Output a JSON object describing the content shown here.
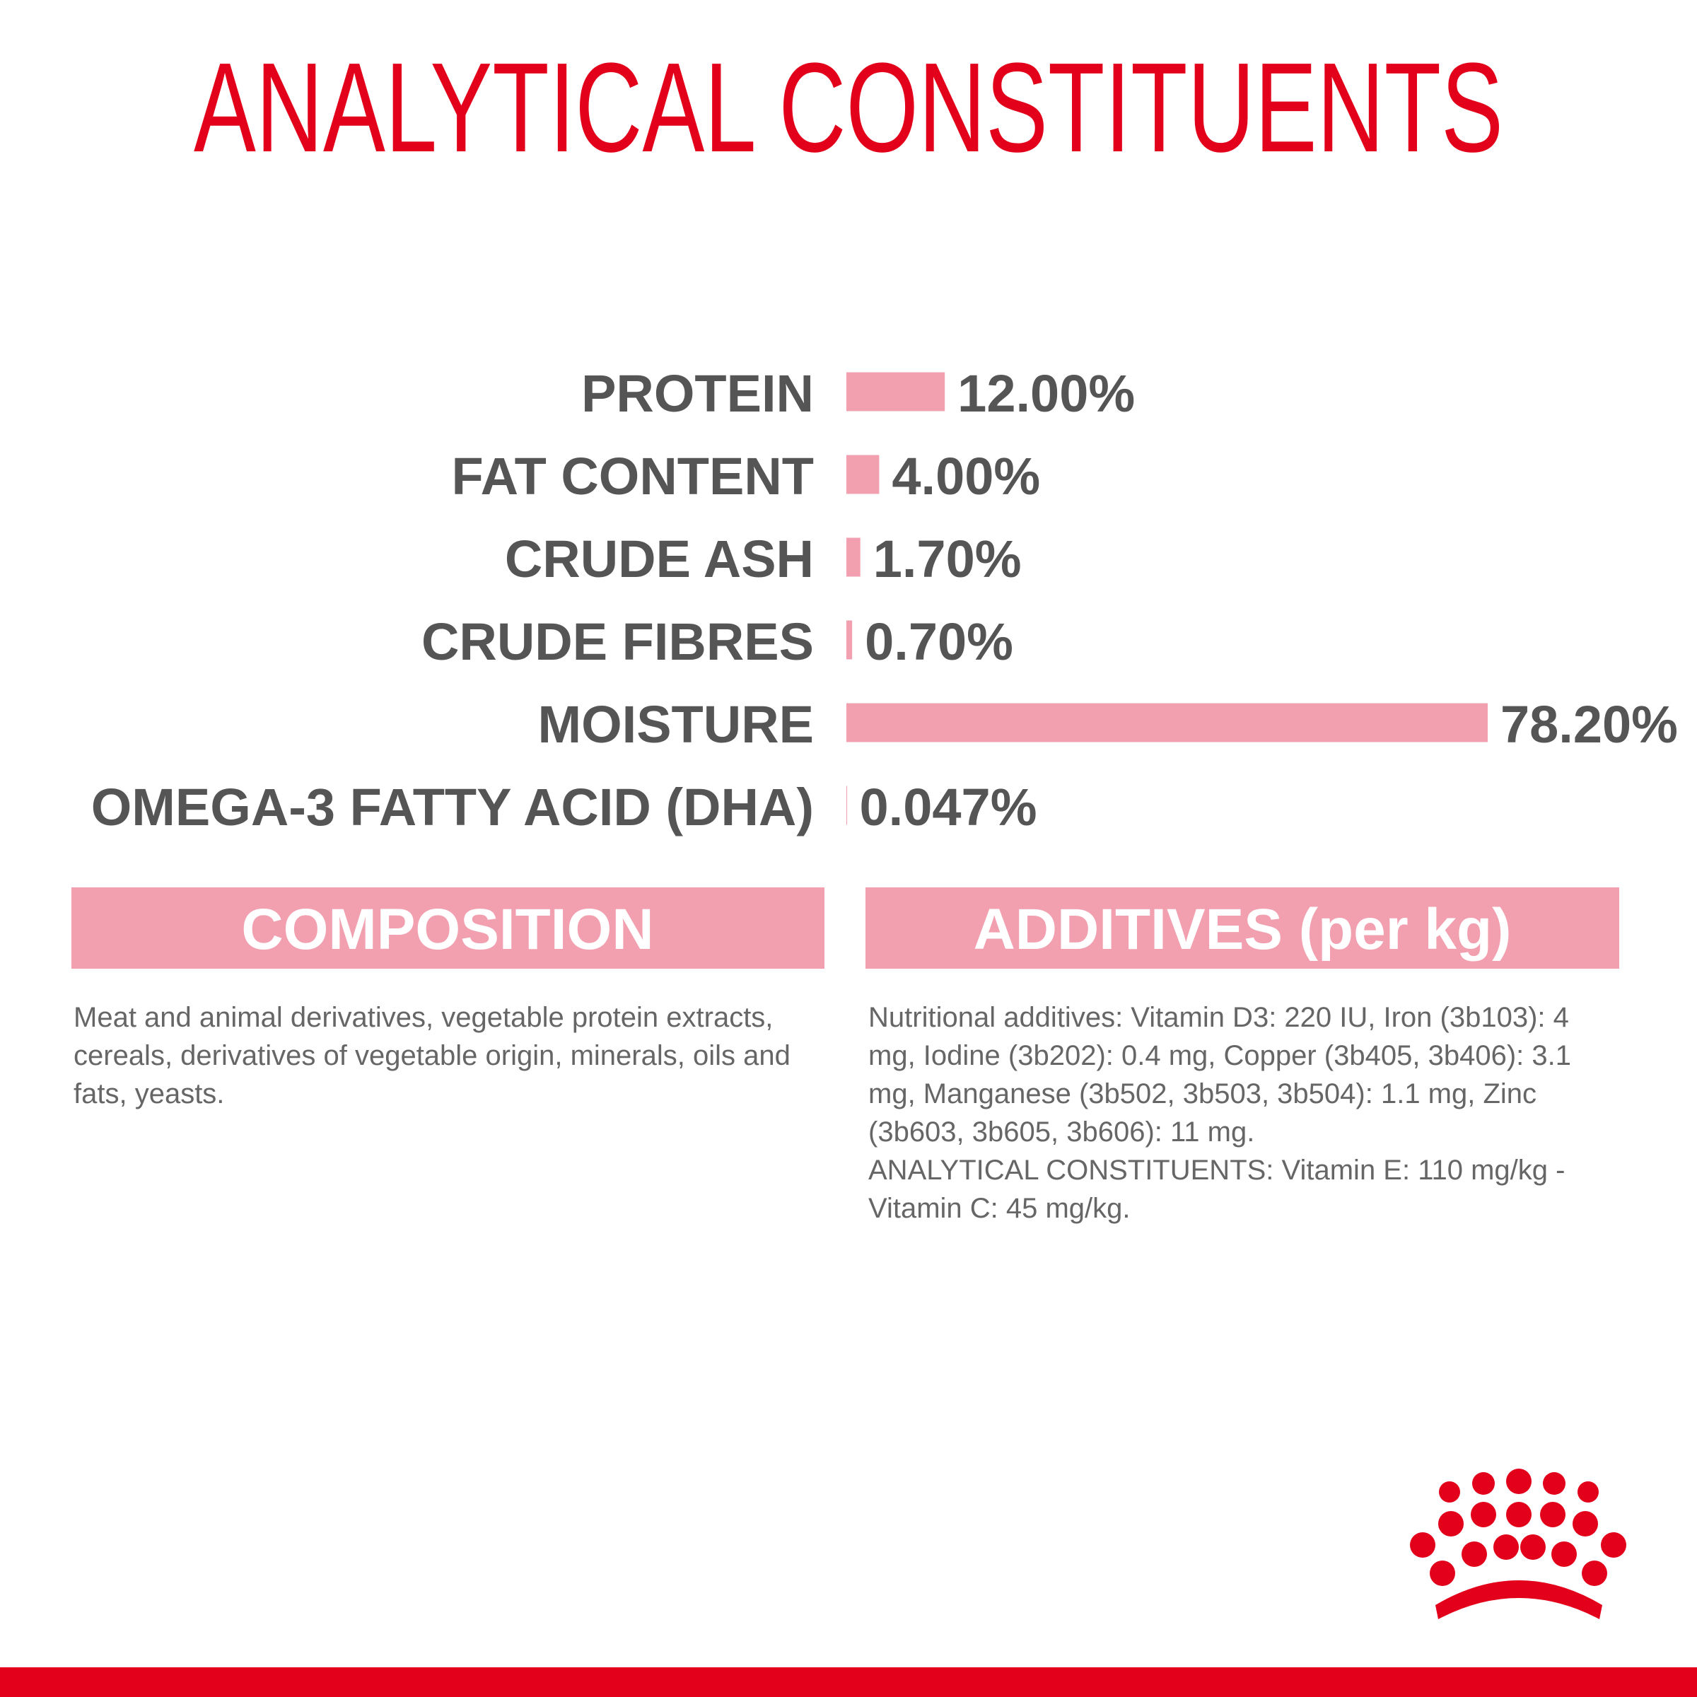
{
  "chart_data": {
    "type": "bar",
    "orientation": "horizontal",
    "title": "ANALYTICAL CONSTITUENTS",
    "categories": [
      "PROTEIN",
      "FAT CONTENT",
      "CRUDE ASH",
      "CRUDE FIBRES",
      "MOISTURE",
      "OMEGA-3 FATTY ACID (DHA)"
    ],
    "values": [
      12,
      4,
      1.7,
      0.7,
      78.2,
      0.047
    ],
    "value_labels": [
      "12.00%",
      "4.00%",
      "1.70%",
      "0.70%",
      "78.20%",
      "0.047%"
    ],
    "color": "#f2a0b0"
  },
  "composition": {
    "heading": "COMPOSITION",
    "text": "Meat and animal derivatives, vegetable protein extracts, cereals, derivatives of vegetable origin, minerals, oils and fats, yeasts."
  },
  "additives": {
    "heading": "ADDITIVES (per kg)",
    "paragraphs": [
      "Nutritional additives: Vitamin D3: 220 IU, Iron (3b103): 4 mg, Iodine (3b202): 0.4 mg, Copper (3b405, 3b406): 3.1 mg, Manganese (3b502, 3b503, 3b504): 1.1 mg, Zinc (3b603, 3b605, 3b606): 11 mg.",
      "ANALYTICAL CONSTITUENTS: Vitamin E: 110 mg/kg - Vitamin C: 45 mg/kg."
    ]
  }
}
